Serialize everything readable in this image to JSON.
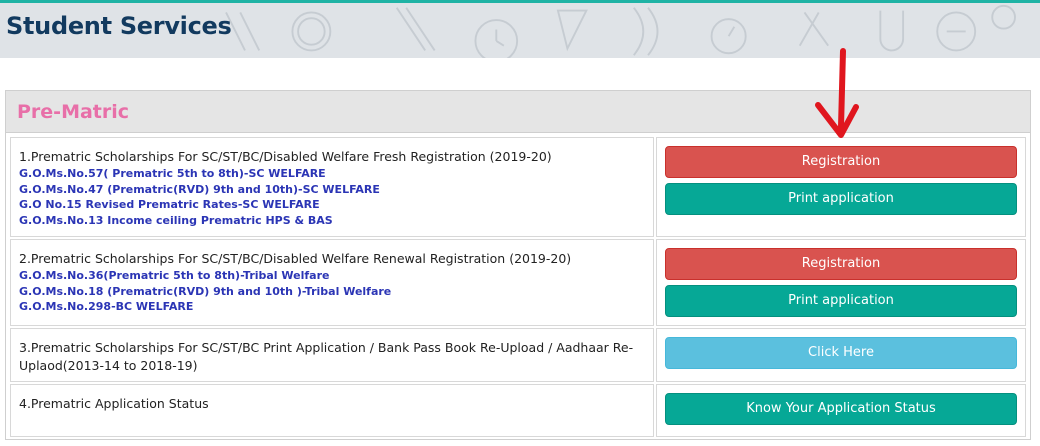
{
  "header": {
    "title": "Student Services"
  },
  "panel": {
    "heading": "Pre-Matric"
  },
  "rows": [
    {
      "title": "1.Prematric Scholarships For SC/ST/BC/Disabled Welfare Fresh Registration (2019-20)",
      "links": [
        "G.O.Ms.No.57( Prematric 5th to 8th)-SC WELFARE",
        "G.O.Ms.No.47 (Prematric(RVD) 9th and 10th)-SC WELFARE",
        "G.O No.15 Revised Prematric Rates-SC WELFARE",
        "G.O.Ms.No.13 Income ceiling Prematric HPS & BAS"
      ],
      "buttons": [
        "Registration",
        "Print application"
      ]
    },
    {
      "title": "2.Prematric Scholarships For SC/ST/BC/Disabled Welfare Renewal Registration (2019-20)",
      "links": [
        "G.O.Ms.No.36(Prematric 5th to 8th)-Tribal Welfare",
        "G.O.Ms.No.18 (Prematric(RVD) 9th and 10th )-Tribal Welfare",
        "G.O.Ms.No.298-BC WELFARE"
      ],
      "buttons": [
        "Registration",
        "Print application"
      ]
    },
    {
      "title": "3.Prematric Scholarships For SC/ST/BC Print Application / Bank Pass Book Re-Upload / Aadhaar Re-Uplaod(2013-14 to 2018-19)",
      "links": [],
      "buttons": [
        "Click Here"
      ]
    },
    {
      "title": "4.Prematric Application Status",
      "links": [],
      "buttons": [
        "Know Your Application Status"
      ]
    }
  ],
  "colors": {
    "danger": "#d9534f",
    "teal": "#06a896",
    "info": "#5bc0de",
    "link": "#2b35b5",
    "heading": "#e86fa8",
    "header_title": "#123a5f",
    "arrow": "#e0161e"
  },
  "icons": {
    "annotation": "red-down-arrow-icon"
  }
}
